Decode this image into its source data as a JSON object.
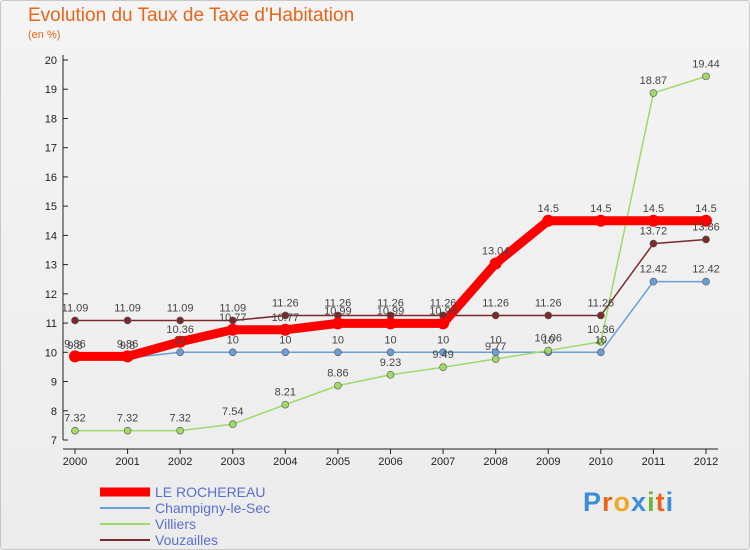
{
  "title": "Evolution du Taux de Taxe d'Habitation",
  "subtitle": "(en %)",
  "logo": "Proxiti",
  "chart_data": {
    "type": "line",
    "title": "Evolution du Taux de Taxe d'Habitation",
    "ylabel": "(en %)",
    "xlabel": "",
    "x": [
      "2000",
      "2001",
      "2002",
      "2003",
      "2004",
      "2005",
      "2006",
      "2007",
      "2008",
      "2009",
      "2010",
      "2011",
      "2012"
    ],
    "ylim": [
      7,
      20
    ],
    "yticks": [
      "7",
      "8",
      "9",
      "10",
      "11",
      "12",
      "13",
      "14",
      "15",
      "16",
      "17",
      "18",
      "19",
      "20"
    ],
    "grid": false,
    "legend_position": "bottom-left",
    "series": [
      {
        "name": "LE ROCHEREAU",
        "color": "#ff0000",
        "values": [
          9.86,
          9.86,
          10.36,
          10.77,
          10.77,
          10.99,
          10.99,
          10.99,
          13.04,
          14.5,
          14.5,
          14.5,
          14.5
        ],
        "labels": [
          "9.86",
          "9.86",
          "10.36",
          "10.77",
          "10.77",
          "10.99",
          "10.99",
          "10.99",
          "13.04",
          "14.5",
          "14.5",
          "14.5",
          "14.5"
        ]
      },
      {
        "name": "Champigny-le-Sec",
        "color": "#6a9ed6",
        "values": [
          9.8,
          9.8,
          10,
          10,
          10,
          10,
          10,
          10,
          10,
          10,
          10,
          12.42,
          12.42
        ],
        "labels": [
          "9.8",
          "9.8",
          "10",
          "10",
          "10",
          "10",
          "10",
          "10",
          "10",
          "10",
          "10",
          "12.42",
          "12.42"
        ]
      },
      {
        "name": "Villiers",
        "color": "#9ed96a",
        "values": [
          7.32,
          7.32,
          7.32,
          7.54,
          8.21,
          8.86,
          9.23,
          9.49,
          9.77,
          10.06,
          10.36,
          18.87,
          19.44
        ],
        "labels": [
          "7.32",
          "7.32",
          "7.32",
          "7.54",
          "8.21",
          "8.86",
          "9.23",
          "9.49",
          "9.77",
          "10.06",
          "10.36",
          "18.87",
          "19.44"
        ]
      },
      {
        "name": "Vouzailles",
        "color": "#7a2a2a",
        "values": [
          11.09,
          11.09,
          11.09,
          11.09,
          11.26,
          11.26,
          11.26,
          11.26,
          11.26,
          11.26,
          11.26,
          13.72,
          13.86
        ],
        "labels": [
          "11.09",
          "11.09",
          "11.09",
          "11.09",
          "11.26",
          "11.26",
          "11.26",
          "11.26",
          "11.26",
          "11.26",
          "11.26",
          "13.72",
          "13.86"
        ]
      }
    ]
  }
}
